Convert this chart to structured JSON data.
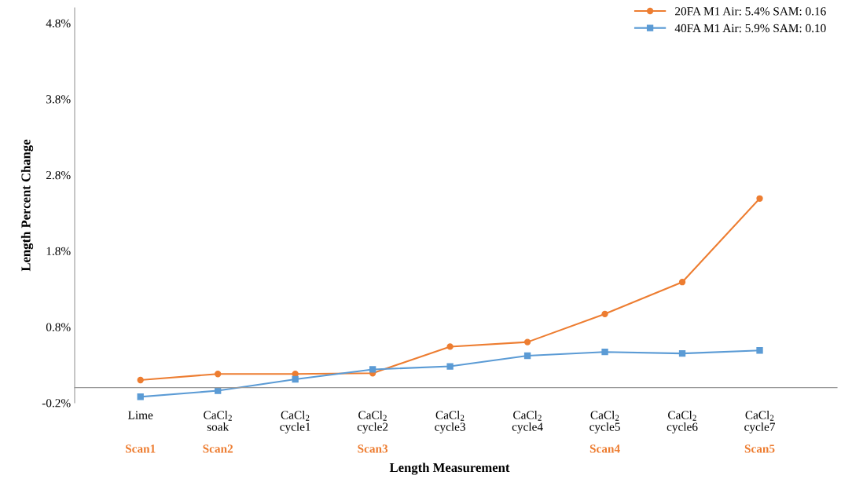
{
  "chart_data": {
    "type": "line",
    "xlabel": "Length Measurement",
    "ylabel": "Length Percent Change",
    "categories": [
      "Lime\n\nScan1",
      "CaCl$_{2}$\nsoak\n\nScan2",
      "CaCl$_{2}$\ncycle1",
      "CaCl$_{2}$\ncycle2\n\nScan3",
      "CaCl$_{2}$\ncycle3",
      "CaCl$_{2}$\ncycle4",
      "CaCl$_{2}$\ncycle5\n\nScan4",
      "CaCl$_{2}$\ncycle6",
      "CaCl$_{2}$\ncycle7\n\nScan5"
    ],
    "series": [
      {
        "name": "20FA M1 Air: 5.4% SAM: 0.16",
        "color": "#ed7d31",
        "marker": "circle",
        "values": [
          0.1,
          0.18,
          0.18,
          0.19,
          0.54,
          0.6,
          0.97,
          1.39,
          2.49
        ]
      },
      {
        "name": "40FA M1 Air: 5.9% SAM: 0.10",
        "color": "#5b9bd5",
        "marker": "square",
        "values": [
          -0.12,
          -0.04,
          0.11,
          0.24,
          0.28,
          0.42,
          0.47,
          0.45,
          0.49
        ]
      }
    ],
    "ylim": [
      -0.2,
      5.0
    ],
    "yticks": [
      {
        "value": -0.2,
        "label": "-0.2%"
      },
      {
        "value": 0.8,
        "label": "0.8%"
      },
      {
        "value": 1.8,
        "label": "1.8%"
      },
      {
        "value": 2.8,
        "label": "2.8%"
      },
      {
        "value": 3.8,
        "label": "3.8%"
      },
      {
        "value": 4.8,
        "label": "4.8%"
      }
    ],
    "grid": false,
    "legend": "top right",
    "line_style": "solid"
  }
}
